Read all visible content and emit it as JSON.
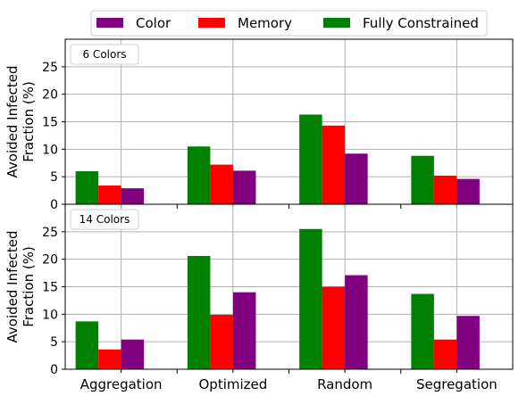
{
  "legend": {
    "items": [
      {
        "label": "Color",
        "color": "#800080"
      },
      {
        "label": "Memory",
        "color": "#ff0000"
      },
      {
        "label": "Fully Constrained",
        "color": "#008000"
      }
    ],
    "placement": "top-center, above plots"
  },
  "chart_data": [
    {
      "type": "bar",
      "panel_label": "6 Colors",
      "ylabel": "Avoided Infected\nFraction (%)",
      "categories": [
        "Aggregation",
        "Optimized",
        "Random",
        "Segregation"
      ],
      "series": [
        {
          "name": "Fully Constrained",
          "color": "#008000",
          "values": [
            6.0,
            10.5,
            16.3,
            8.8
          ]
        },
        {
          "name": "Memory",
          "color": "#ff0000",
          "values": [
            3.4,
            7.2,
            14.3,
            5.2
          ]
        },
        {
          "name": "Color",
          "color": "#800080",
          "values": [
            2.9,
            6.1,
            9.2,
            4.6
          ]
        }
      ],
      "ylim": [
        0,
        30
      ],
      "yticks": [
        0,
        5,
        10,
        15,
        20,
        25
      ],
      "grid": true
    },
    {
      "type": "bar",
      "panel_label": "14 Colors",
      "ylabel": "Avoided Infected\nFraction (%)",
      "categories": [
        "Aggregation",
        "Optimized",
        "Random",
        "Segregation"
      ],
      "series": [
        {
          "name": "Fully Constrained",
          "color": "#008000",
          "values": [
            8.7,
            20.6,
            25.5,
            13.7
          ]
        },
        {
          "name": "Memory",
          "color": "#ff0000",
          "values": [
            3.6,
            9.9,
            15.0,
            5.4
          ]
        },
        {
          "name": "Color",
          "color": "#800080",
          "values": [
            5.4,
            14.0,
            17.1,
            9.7
          ]
        }
      ],
      "ylim": [
        0,
        30
      ],
      "yticks": [
        0,
        5,
        10,
        15,
        20,
        25
      ],
      "grid": true
    }
  ]
}
